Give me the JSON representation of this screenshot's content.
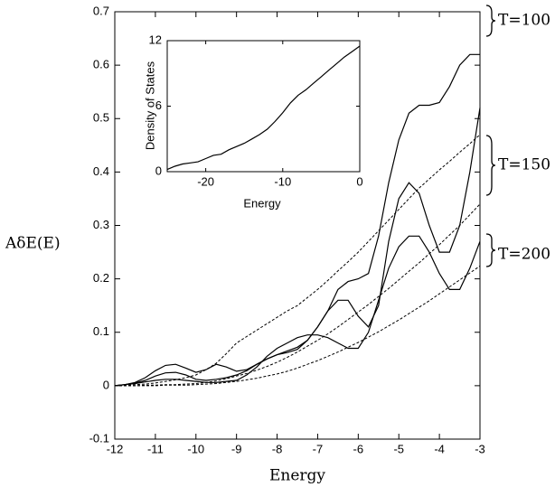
{
  "chart_data": [
    {
      "type": "line",
      "xlabel": "Energy",
      "ylabel": "AδE(E)",
      "annotations": [
        "T=100",
        "T=150",
        "T=200"
      ],
      "x": [
        -12,
        -11.75,
        -11.5,
        -11.25,
        -11,
        -10.75,
        -10.5,
        -10.25,
        -10,
        -9.75,
        -9.5,
        -9.25,
        -9,
        -8.75,
        -8.5,
        -8.25,
        -8,
        -7.75,
        -7.5,
        -7.25,
        -7,
        -6.75,
        -6.5,
        -6.25,
        -6,
        -5.75,
        -5.5,
        -5.25,
        -5,
        -4.75,
        -4.5,
        -4.25,
        -4,
        -3.75,
        -3.5,
        -3.25,
        -3
      ],
      "series": [
        {
          "color": "#000000",
          "dash": false,
          "values": [
            0,
            0.002,
            0.006,
            0.015,
            0.028,
            0.038,
            0.04,
            0.033,
            0.025,
            0.03,
            0.04,
            0.035,
            0.027,
            0.03,
            0.04,
            0.05,
            0.058,
            0.065,
            0.072,
            0.085,
            0.11,
            0.14,
            0.18,
            0.195,
            0.2,
            0.21,
            0.28,
            0.38,
            0.46,
            0.51,
            0.525,
            0.525,
            0.53,
            0.56,
            0.6,
            0.62,
            0.62
          ]
        },
        {
          "color": "#000000",
          "dash": false,
          "values": [
            0,
            0.002,
            0.005,
            0.01,
            0.018,
            0.024,
            0.025,
            0.02,
            0.012,
            0.01,
            0.012,
            0.015,
            0.02,
            0.028,
            0.04,
            0.05,
            0.058,
            0.062,
            0.068,
            0.085,
            0.11,
            0.14,
            0.16,
            0.16,
            0.13,
            0.11,
            0.15,
            0.27,
            0.35,
            0.38,
            0.36,
            0.3,
            0.25,
            0.25,
            0.3,
            0.4,
            0.52
          ]
        },
        {
          "color": "#000000",
          "dash": false,
          "values": [
            0,
            0.002,
            0.004,
            0.007,
            0.01,
            0.012,
            0.012,
            0.01,
            0.008,
            0.006,
            0.006,
            0.008,
            0.01,
            0.02,
            0.035,
            0.055,
            0.07,
            0.08,
            0.09,
            0.095,
            0.095,
            0.09,
            0.08,
            0.07,
            0.07,
            0.1,
            0.16,
            0.22,
            0.26,
            0.28,
            0.28,
            0.25,
            0.21,
            0.18,
            0.18,
            0.22,
            0.27
          ]
        },
        {
          "color": "#000000",
          "dash": true,
          "values": [
            0,
            0.001,
            0.002,
            0.003,
            0.005,
            0.008,
            0.011,
            0.015,
            0.02,
            0.03,
            0.042,
            0.06,
            0.08,
            0.092,
            0.104,
            0.116,
            0.128,
            0.14,
            0.15,
            0.165,
            0.18,
            0.197,
            0.215,
            0.232,
            0.25,
            0.27,
            0.29,
            0.31,
            0.33,
            0.35,
            0.37,
            0.387,
            0.404,
            0.42,
            0.437,
            0.453,
            0.47
          ]
        },
        {
          "color": "#000000",
          "dash": true,
          "values": [
            0,
            0,
            0,
            0.001,
            0.001,
            0.002,
            0.002,
            0.003,
            0.004,
            0.006,
            0.009,
            0.013,
            0.018,
            0.023,
            0.029,
            0.036,
            0.044,
            0.053,
            0.063,
            0.074,
            0.085,
            0.097,
            0.11,
            0.124,
            0.138,
            0.152,
            0.167,
            0.182,
            0.198,
            0.214,
            0.23,
            0.247,
            0.264,
            0.282,
            0.3,
            0.32,
            0.34
          ]
        },
        {
          "color": "#000000",
          "dash": true,
          "values": [
            0,
            0,
            0,
            0,
            0,
            0.001,
            0.001,
            0.001,
            0.002,
            0.003,
            0.004,
            0.006,
            0.008,
            0.011,
            0.014,
            0.018,
            0.022,
            0.027,
            0.033,
            0.04,
            0.047,
            0.055,
            0.063,
            0.072,
            0.081,
            0.091,
            0.101,
            0.112,
            0.123,
            0.135,
            0.147,
            0.159,
            0.172,
            0.185,
            0.198,
            0.211,
            0.224
          ]
        }
      ],
      "xlim": [
        -12,
        -3
      ],
      "ylim": [
        -0.1,
        0.7
      ],
      "xticks": [
        -12,
        -11,
        -10,
        -9,
        -8,
        -7,
        -6,
        -5,
        -4,
        -3
      ],
      "yticks": [
        -0.1,
        0,
        0.1,
        0.2,
        0.3,
        0.4,
        0.5,
        0.6,
        0.7
      ]
    },
    {
      "type": "line",
      "xlabel": "Energy",
      "ylabel": "Density of States",
      "x": [
        -25,
        -24,
        -23,
        -22,
        -21,
        -20,
        -19,
        -18,
        -17,
        -16,
        -15,
        -14,
        -13,
        -12,
        -11,
        -10,
        -9,
        -8,
        -7,
        -6,
        -5,
        -4,
        -3,
        -2,
        -1,
        0
      ],
      "series": [
        {
          "color": "#000000",
          "dash": false,
          "values": [
            0.2,
            0.5,
            0.7,
            0.8,
            0.9,
            1.2,
            1.5,
            1.6,
            2.0,
            2.3,
            2.6,
            3.0,
            3.4,
            3.9,
            4.6,
            5.4,
            6.3,
            7.0,
            7.5,
            8.1,
            8.7,
            9.3,
            9.9,
            10.5,
            11.0,
            11.5
          ]
        }
      ],
      "xlim": [
        -25,
        0
      ],
      "ylim": [
        0,
        12
      ],
      "xticks": [
        -20,
        -10,
        0
      ],
      "yticks": [
        0,
        6,
        12
      ]
    }
  ]
}
